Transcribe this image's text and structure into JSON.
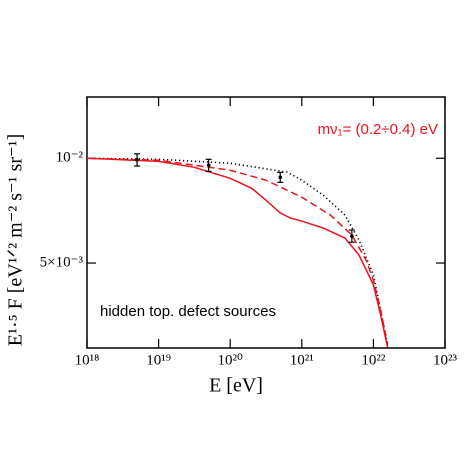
{
  "chart_data": {
    "type": "line",
    "xlog": true,
    "ylog": true,
    "xlim": [
      1e+18,
      1e+23
    ],
    "ylim": [
      0.00285,
      0.015
    ],
    "xticks": [
      {
        "value": 1e+18,
        "label": "10¹⁸"
      },
      {
        "value": 1e+19,
        "label": "10¹⁹"
      },
      {
        "value": 1e+20,
        "label": "10²⁰"
      },
      {
        "value": 1e+21,
        "label": "10²¹"
      },
      {
        "value": 1e+22,
        "label": "10²²"
      },
      {
        "value": 1e+23,
        "label": "10²³"
      }
    ],
    "yticks": [
      {
        "value": 0.01,
        "label": "10⁻²"
      },
      {
        "value": 0.005,
        "label": "5×10⁻³"
      }
    ],
    "xlabel": "E [eV]",
    "ylabel": "E¹·⁵ F [eV¹ᐟ² m⁻² s⁻¹ sr⁻¹]",
    "annotations": [
      {
        "text": "mν₁= (0.2÷0.4) eV",
        "color": "#e8141e"
      },
      {
        "text": "hidden top. defect sources",
        "color": "#000000"
      }
    ],
    "series": [
      {
        "color": "#000000",
        "linestyle": "dotted",
        "x": [
          1e+18,
          1e+19,
          1e+20,
          6.3e+20,
          1e+21,
          2e+21,
          4e+21,
          6.3e+21,
          1e+22,
          1.58e+22
        ],
        "values": [
          0.01,
          0.00993,
          0.00968,
          0.00912,
          0.00865,
          0.00783,
          0.00687,
          0.00582,
          0.00462,
          0.00291
        ]
      },
      {
        "color": "#e8141e",
        "linestyle": "dashed",
        "x": [
          1e+18,
          1e+19,
          1e+20,
          3.16e+20,
          1e+21,
          2.5e+21,
          5e+21,
          7.9e+21,
          1e+22,
          1.26e+22,
          1.58e+22
        ],
        "values": [
          0.01,
          0.00987,
          0.00924,
          0.00865,
          0.00773,
          0.00687,
          0.00602,
          0.0051,
          0.00447,
          0.00367,
          0.00291
        ]
      },
      {
        "color": "#e8141e",
        "linestyle": "solid",
        "x": [
          1e+18,
          1e+19,
          3.16e+19,
          1e+20,
          2e+20,
          3.16e+20,
          5e+20,
          7e+20,
          1e+21,
          2e+21,
          4e+21,
          6.3e+21,
          1e+22,
          1.26e+22,
          1.58e+22
        ],
        "values": [
          0.01,
          0.0098,
          0.00942,
          0.00876,
          0.0082,
          0.00758,
          0.00696,
          0.00673,
          0.0066,
          0.0063,
          0.0059,
          0.00527,
          0.00433,
          0.00355,
          0.00286
        ]
      }
    ],
    "points": {
      "color": "#000000",
      "x": [
        5e+18,
        5e+19,
        5e+20,
        5e+21
      ],
      "values": [
        0.0099,
        0.00955,
        0.00882,
        0.00598
      ],
      "errors": [
        0.0004,
        0.00038,
        0.00029,
        0.00024
      ]
    }
  }
}
